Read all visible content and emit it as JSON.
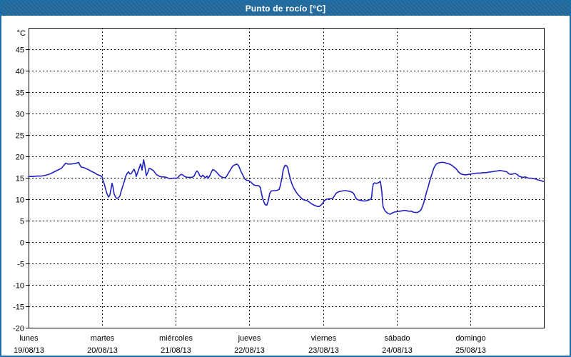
{
  "header": {
    "title": "Punto de rocío [°C]"
  },
  "colors": {
    "header_bg": "#20699b",
    "header_text": "#ffffff",
    "window_border": "#1d6ea7",
    "plot_bg": "#ffffff",
    "grid": "#000000",
    "axis": "#000000",
    "label_text": "#000000",
    "line": "#2121bd"
  },
  "chart_data": {
    "type": "line",
    "title": "Punto de rocío [°C]",
    "ylabel": "°C",
    "ylim": [
      -20,
      50
    ],
    "yticks": [
      45,
      40,
      35,
      30,
      25,
      20,
      15,
      10,
      5,
      0,
      -5,
      -10,
      -15,
      -20
    ],
    "x_unit": "hours_from_monday_00h",
    "xlim_hours": [
      0,
      168
    ],
    "grid": "dashed",
    "legend": "none",
    "categories": [
      {
        "name": "lunes",
        "date": "19/08/13"
      },
      {
        "name": "martes",
        "date": "20/08/13"
      },
      {
        "name": "miércoles",
        "date": "21/08/13"
      },
      {
        "name": "jueves",
        "date": "22/08/13"
      },
      {
        "name": "viernes",
        "date": "23/08/13"
      },
      {
        "name": "sábado",
        "date": "24/08/13"
      },
      {
        "name": "domingo",
        "date": "25/08/13"
      }
    ],
    "series": [
      {
        "name": "Punto de rocío",
        "color": "#2121bd",
        "points": [
          [
            0.0,
            15.3
          ],
          [
            1.4,
            15.3
          ],
          [
            2.8,
            15.4
          ],
          [
            4.2,
            15.4
          ],
          [
            5.6,
            15.6
          ],
          [
            7.0,
            15.9
          ],
          [
            8.4,
            16.4
          ],
          [
            9.8,
            16.9
          ],
          [
            10.7,
            17.2
          ],
          [
            11.6,
            18.0
          ],
          [
            12.1,
            18.4
          ],
          [
            12.8,
            18.2
          ],
          [
            13.7,
            18.2
          ],
          [
            14.7,
            18.3
          ],
          [
            15.6,
            18.4
          ],
          [
            16.3,
            18.6
          ],
          [
            16.7,
            18.0
          ],
          [
            17.2,
            17.5
          ],
          [
            17.9,
            17.4
          ],
          [
            18.6,
            17.2
          ],
          [
            19.5,
            16.9
          ],
          [
            20.5,
            16.5
          ],
          [
            21.4,
            16.2
          ],
          [
            22.3,
            15.8
          ],
          [
            23.0,
            15.6
          ],
          [
            23.5,
            15.5
          ],
          [
            24.0,
            15.2
          ],
          [
            24.2,
            14.5
          ],
          [
            24.7,
            13.5
          ],
          [
            25.1,
            12.4
          ],
          [
            25.6,
            11.2
          ],
          [
            26.1,
            10.5
          ],
          [
            26.5,
            11.0
          ],
          [
            27.0,
            12.8
          ],
          [
            27.2,
            13.7
          ],
          [
            27.5,
            12.9
          ],
          [
            27.9,
            11.2
          ],
          [
            28.4,
            10.4
          ],
          [
            28.8,
            10.2
          ],
          [
            29.3,
            10.3
          ],
          [
            29.8,
            10.8
          ],
          [
            30.2,
            11.9
          ],
          [
            30.7,
            13.0
          ],
          [
            31.2,
            14.1
          ],
          [
            31.6,
            15.2
          ],
          [
            32.1,
            16.0
          ],
          [
            32.6,
            16.4
          ],
          [
            33.0,
            15.9
          ],
          [
            33.5,
            16.0
          ],
          [
            34.0,
            16.6
          ],
          [
            34.4,
            17.0
          ],
          [
            34.9,
            16.1
          ],
          [
            35.1,
            15.3
          ],
          [
            35.6,
            16.3
          ],
          [
            36.1,
            17.3
          ],
          [
            36.5,
            18.2
          ],
          [
            36.8,
            17.5
          ],
          [
            37.0,
            16.8
          ],
          [
            37.5,
            19.2
          ],
          [
            37.9,
            17.8
          ],
          [
            38.2,
            16.3
          ],
          [
            38.4,
            15.5
          ],
          [
            38.9,
            16.3
          ],
          [
            39.3,
            17.2
          ],
          [
            39.8,
            17.1
          ],
          [
            40.2,
            16.9
          ],
          [
            40.7,
            16.7
          ],
          [
            41.2,
            16.2
          ],
          [
            41.6,
            15.8
          ],
          [
            42.1,
            15.6
          ],
          [
            42.8,
            15.3
          ],
          [
            43.5,
            15.2
          ],
          [
            44.2,
            15.2
          ],
          [
            44.9,
            15.1
          ],
          [
            45.6,
            14.9
          ],
          [
            46.3,
            14.8
          ],
          [
            47.0,
            14.9
          ],
          [
            48.2,
            14.9
          ],
          [
            48.6,
            15.0
          ],
          [
            49.3,
            15.6
          ],
          [
            49.8,
            15.8
          ],
          [
            50.2,
            15.7
          ],
          [
            50.7,
            15.4
          ],
          [
            51.2,
            15.2
          ],
          [
            51.9,
            15.1
          ],
          [
            52.6,
            15.1
          ],
          [
            53.3,
            15.1
          ],
          [
            54.0,
            15.4
          ],
          [
            54.4,
            16.1
          ],
          [
            54.9,
            16.6
          ],
          [
            55.4,
            16.2
          ],
          [
            55.8,
            15.5
          ],
          [
            56.3,
            15.2
          ],
          [
            56.8,
            15.6
          ],
          [
            57.2,
            15.3
          ],
          [
            57.7,
            15.0
          ],
          [
            58.2,
            15.4
          ],
          [
            58.6,
            14.9
          ],
          [
            59.1,
            15.5
          ],
          [
            59.6,
            16.3
          ],
          [
            60.0,
            16.9
          ],
          [
            60.5,
            16.8
          ],
          [
            61.2,
            16.4
          ],
          [
            61.9,
            15.8
          ],
          [
            62.6,
            15.3
          ],
          [
            63.3,
            15.1
          ],
          [
            64.0,
            15.0
          ],
          [
            64.4,
            15.2
          ],
          [
            65.1,
            16.0
          ],
          [
            65.6,
            16.6
          ],
          [
            66.1,
            17.2
          ],
          [
            66.5,
            17.7
          ],
          [
            67.0,
            17.9
          ],
          [
            67.5,
            18.1
          ],
          [
            67.9,
            18.2
          ],
          [
            68.4,
            17.9
          ],
          [
            68.9,
            17.1
          ],
          [
            69.3,
            16.4
          ],
          [
            69.8,
            15.7
          ],
          [
            70.3,
            15.0
          ],
          [
            70.7,
            14.6
          ],
          [
            71.2,
            14.4
          ],
          [
            71.9,
            14.3
          ],
          [
            72.6,
            13.9
          ],
          [
            73.3,
            13.4
          ],
          [
            74.0,
            13.2
          ],
          [
            74.7,
            13.2
          ],
          [
            75.1,
            13.1
          ],
          [
            75.6,
            12.7
          ],
          [
            75.8,
            11.8
          ],
          [
            76.3,
            10.2
          ],
          [
            76.8,
            9.2
          ],
          [
            77.2,
            8.7
          ],
          [
            77.7,
            8.6
          ],
          [
            78.2,
            9.8
          ],
          [
            78.6,
            11.3
          ],
          [
            79.1,
            11.9
          ],
          [
            79.8,
            12.0
          ],
          [
            80.5,
            12.0
          ],
          [
            81.2,
            12.1
          ],
          [
            81.7,
            12.3
          ],
          [
            82.1,
            13.2
          ],
          [
            82.6,
            15.0
          ],
          [
            83.0,
            16.8
          ],
          [
            83.5,
            17.8
          ],
          [
            84.0,
            17.9
          ],
          [
            84.5,
            17.4
          ],
          [
            84.9,
            16.0
          ],
          [
            85.4,
            14.6
          ],
          [
            85.9,
            13.5
          ],
          [
            86.3,
            12.8
          ],
          [
            86.8,
            12.2
          ],
          [
            87.2,
            11.7
          ],
          [
            87.7,
            11.2
          ],
          [
            88.2,
            10.8
          ],
          [
            88.6,
            10.5
          ],
          [
            89.3,
            10.0
          ],
          [
            90.0,
            9.8
          ],
          [
            90.7,
            9.7
          ],
          [
            91.4,
            9.4
          ],
          [
            92.1,
            9.0
          ],
          [
            92.8,
            8.7
          ],
          [
            93.5,
            8.5
          ],
          [
            94.2,
            8.3
          ],
          [
            94.7,
            8.3
          ],
          [
            95.2,
            8.5
          ],
          [
            95.8,
            9.0
          ],
          [
            96.5,
            9.7
          ],
          [
            97.2,
            10.0
          ],
          [
            97.9,
            10.1
          ],
          [
            98.6,
            10.1
          ],
          [
            99.3,
            10.3
          ],
          [
            99.8,
            10.9
          ],
          [
            100.3,
            11.4
          ],
          [
            100.7,
            11.6
          ],
          [
            101.4,
            11.8
          ],
          [
            102.1,
            11.9
          ],
          [
            102.8,
            12.0
          ],
          [
            103.5,
            12.0
          ],
          [
            104.2,
            11.9
          ],
          [
            104.9,
            11.8
          ],
          [
            105.6,
            11.6
          ],
          [
            106.1,
            11.2
          ],
          [
            106.5,
            10.5
          ],
          [
            107.0,
            10.0
          ],
          [
            107.7,
            9.8
          ],
          [
            108.4,
            9.7
          ],
          [
            109.1,
            9.6
          ],
          [
            109.8,
            9.6
          ],
          [
            110.5,
            9.7
          ],
          [
            111.2,
            9.9
          ],
          [
            111.7,
            10.1
          ],
          [
            111.9,
            10.8
          ],
          [
            112.1,
            12.5
          ],
          [
            112.4,
            13.6
          ],
          [
            112.8,
            13.8
          ],
          [
            113.5,
            13.7
          ],
          [
            114.2,
            13.9
          ],
          [
            114.7,
            14.2
          ],
          [
            114.9,
            13.2
          ],
          [
            115.2,
            11.5
          ],
          [
            115.4,
            9.5
          ],
          [
            115.6,
            8.2
          ],
          [
            116.1,
            7.4
          ],
          [
            116.6,
            7.0
          ],
          [
            117.3,
            6.6
          ],
          [
            118.0,
            6.5
          ],
          [
            118.6,
            6.8
          ],
          [
            119.3,
            7.0
          ],
          [
            120.0,
            7.1
          ],
          [
            121.0,
            7.2
          ],
          [
            121.9,
            7.3
          ],
          [
            122.6,
            7.4
          ],
          [
            123.3,
            7.3
          ],
          [
            124.0,
            7.2
          ],
          [
            124.7,
            7.2
          ],
          [
            125.4,
            7.0
          ],
          [
            126.1,
            6.9
          ],
          [
            126.8,
            6.9
          ],
          [
            127.5,
            7.2
          ],
          [
            128.0,
            7.6
          ],
          [
            128.4,
            8.3
          ],
          [
            128.9,
            9.3
          ],
          [
            129.3,
            10.5
          ],
          [
            129.8,
            11.8
          ],
          [
            130.3,
            12.9
          ],
          [
            130.7,
            14.0
          ],
          [
            131.2,
            15.2
          ],
          [
            131.7,
            16.3
          ],
          [
            132.1,
            17.2
          ],
          [
            132.6,
            17.9
          ],
          [
            133.1,
            18.3
          ],
          [
            133.8,
            18.5
          ],
          [
            134.5,
            18.6
          ],
          [
            135.2,
            18.6
          ],
          [
            135.9,
            18.5
          ],
          [
            136.6,
            18.3
          ],
          [
            137.3,
            18.2
          ],
          [
            138.0,
            17.9
          ],
          [
            138.7,
            17.5
          ],
          [
            139.4,
            17.1
          ],
          [
            140.0,
            16.5
          ],
          [
            140.7,
            16.0
          ],
          [
            141.4,
            15.8
          ],
          [
            142.1,
            15.7
          ],
          [
            142.8,
            15.7
          ],
          [
            143.5,
            15.8
          ],
          [
            144.5,
            15.9
          ],
          [
            145.4,
            16.0
          ],
          [
            146.3,
            16.1
          ],
          [
            147.3,
            16.1
          ],
          [
            148.2,
            16.2
          ],
          [
            149.1,
            16.2
          ],
          [
            150.0,
            16.3
          ],
          [
            151.0,
            16.4
          ],
          [
            151.9,
            16.5
          ],
          [
            152.8,
            16.6
          ],
          [
            153.8,
            16.7
          ],
          [
            154.5,
            16.6
          ],
          [
            155.2,
            16.5
          ],
          [
            155.9,
            16.4
          ],
          [
            156.6,
            15.9
          ],
          [
            157.3,
            15.8
          ],
          [
            158.0,
            15.9
          ],
          [
            158.7,
            16.0
          ],
          [
            159.4,
            15.7
          ],
          [
            159.8,
            15.4
          ],
          [
            160.5,
            15.2
          ],
          [
            161.2,
            15.1
          ],
          [
            161.9,
            15.2
          ],
          [
            162.6,
            15.0
          ],
          [
            163.3,
            14.9
          ],
          [
            164.0,
            14.9
          ],
          [
            164.7,
            14.8
          ],
          [
            165.4,
            14.7
          ],
          [
            166.1,
            14.5
          ],
          [
            166.8,
            14.4
          ],
          [
            167.5,
            14.2
          ],
          [
            168.0,
            14.1
          ]
        ]
      }
    ]
  }
}
